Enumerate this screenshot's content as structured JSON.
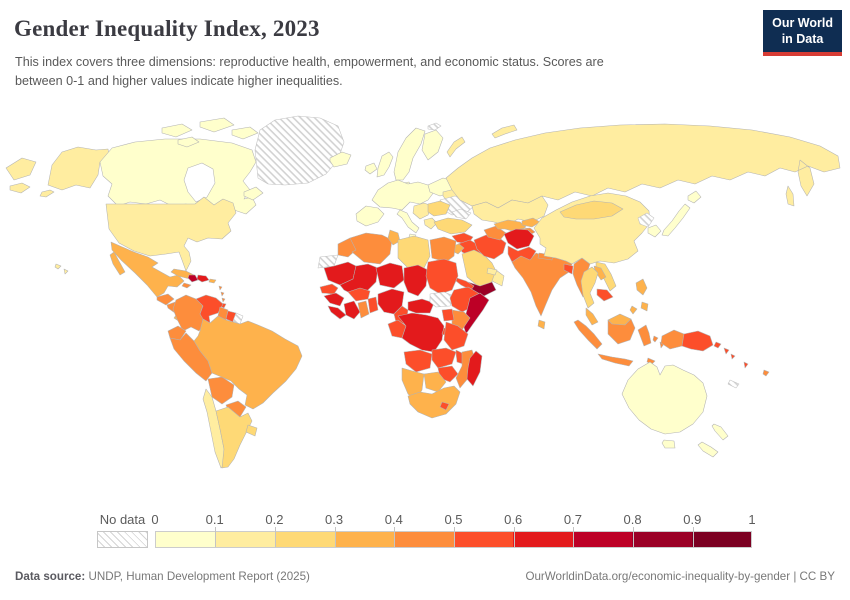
{
  "header": {
    "title": "Gender Inequality Index, 2023",
    "subtitle": "This index covers three dimensions: reproductive health, empowerment, and economic status. Scores are between 0-1 and higher values indicate higher inequalities.",
    "logo": {
      "line1": "Our World",
      "line2": "in Data",
      "bg": "#0f2d52",
      "accent": "#d73c34"
    }
  },
  "legend": {
    "no_data_label": "No data",
    "ticks": [
      "0",
      "0.1",
      "0.2",
      "0.3",
      "0.4",
      "0.5",
      "0.6",
      "0.7",
      "0.8",
      "0.9",
      "1"
    ],
    "bins": [
      "#ffffcc",
      "#ffeda0",
      "#fed976",
      "#feb24c",
      "#fd8d3c",
      "#fc4e2a",
      "#e31a1c",
      "#bd0026",
      "#9b0026",
      "#7c0022"
    ]
  },
  "footer": {
    "source_label": "Data source:",
    "source_value": " UNDP, Human Development Report (2025)",
    "right": "OurWorldinData.org/economic-inequality-by-gender | CC BY"
  },
  "map": {
    "stroke": "#b3b3b3",
    "hatch_stroke": "#c2c2c2",
    "region_fills": {
      "chukotka": "#ffeda0",
      "alaska": "#ffeda0",
      "canada": "#ffffcc",
      "hudson-bay": "#ffffff",
      "canada-arctic-1": "#ffffcc",
      "canada-arctic-2": "#ffffcc",
      "canada-arctic-3": "#ffffcc",
      "canada-arctic-4": "#ffffcc",
      "newfoundland": "#ffffcc",
      "greenland": "hatch",
      "iceland": "#ffffcc",
      "usa": "#ffeda0",
      "hawaii": "#ffeda0",
      "mexico": "#feb24c",
      "guatemala": "#fd8d3c",
      "honduras-nicaragua": "#fd8d3c",
      "costa-rica-panama": "#feb24c",
      "cuba": "#feb24c",
      "jamaica": "#fd8d3c",
      "haiti": "#bd0026",
      "dominican-republic": "#e31a1c",
      "puerto-rico": "#feb24c",
      "lesser-antilles": "#fd8d3c",
      "trinidad": "#fc4e2a",
      "colombia": "#fd8d3c",
      "venezuela": "#fc4e2a",
      "guyana": "#fd8d3c",
      "suriname": "#fc4e2a",
      "french-guiana": "hatch",
      "ecuador": "#fd8d3c",
      "peru": "#fd8d3c",
      "brazil": "#feb24c",
      "bolivia": "#fd8d3c",
      "paraguay": "#fd8d3c",
      "chile": "#ffeda0",
      "argentina": "#fed976",
      "uruguay": "#fed976",
      "ireland": "#ffffcc",
      "uk": "#ffffcc",
      "norway-sweden": "#ffffcc",
      "finland": "#ffffcc",
      "denmark": "#ffffcc",
      "europe-west": "#ffffcc",
      "iberia": "#ffffcc",
      "italy": "#ffffcc",
      "europe-central": "#ffffcc",
      "belarus": "#ffeda0",
      "ukraine": "hatch",
      "balkans": "#ffeda0",
      "romania-bulgaria": "#fed976",
      "greece": "#ffeda0",
      "russia": "#ffeda0",
      "novaya-zemlya-1": "#ffeda0",
      "novaya-zemlya-2": "#ffeda0",
      "svalbard": "hatch",
      "kazakhstan": "#ffeda0",
      "caucasus": "hatch",
      "turkey": "#fed976",
      "syria": "#fc4e2a",
      "iraq": "#fc4e2a",
      "israel": "#ffffcc",
      "jordan": "#feb24c",
      "saudi-arabia": "#fed976",
      "yemen": "#9b0026",
      "oman": "#ffeda0",
      "uae": "#ffeda0",
      "iran": "#fc4e2a",
      "turkmenistan": "#fd8d3c",
      "uzbekistan": "#feb24c",
      "kyrgyzstan": "#feb24c",
      "tajikistan": "#fd8d3c",
      "afghanistan": "#e31a1c",
      "pakistan": "#fc4e2a",
      "india": "#fd8d3c",
      "nepal": "#fd8d3c",
      "bangladesh": "#fc4e2a",
      "sri-lanka": "#feb24c",
      "myanmar": "#fd8d3c",
      "china": "#ffeda0",
      "mongolia": "#fed976",
      "north-korea": "hatch",
      "south-korea": "#ffffcc",
      "japan": "#ffffcc",
      "vietnam": "#fed976",
      "laos": "#feb24c",
      "thailand": "#fed976",
      "cambodia": "#fc4e2a",
      "malaysia": "#feb24c",
      "sumatra": "#fd8d3c",
      "java": "#fd8d3c",
      "borneo-malaysia": "#feb24c",
      "borneo-indonesia": "#fd8d3c",
      "sulawesi": "#fd8d3c",
      "moluccas": "#fd8d3c",
      "timor": "#fd8d3c",
      "philippines": "#feb24c",
      "west-papua": "#fd8d3c",
      "papua-new-guinea": "#fc4e2a",
      "solomon-islands": "#fc4e2a",
      "vanuatu": "#fc4e2a",
      "fiji": "#fd8d3c",
      "new-caledonia": "hatch",
      "australia": "#ffffcc",
      "tasmania": "#ffffcc",
      "new-zealand": "#ffffcc",
      "morocco": "#fd8d3c",
      "western-sahara": "hatch",
      "algeria": "#fd8d3c",
      "tunisia": "#feb24c",
      "libya": "#fed976",
      "egypt": "#fd8d3c",
      "mauritania": "#e31a1c",
      "mali": "#e31a1c",
      "niger": "#e31a1c",
      "chad": "#e31a1c",
      "sudan": "#fc4e2a",
      "eritrea": "#fc4e2a",
      "senegal": "#fc4e2a",
      "guinea": "#e31a1c",
      "sierra-leone-liberia": "#e31a1c",
      "ivory-coast": "#e31a1c",
      "ghana": "#fd8d3c",
      "togo-benin": "#fc4e2a",
      "burkina-faso": "#fc4e2a",
      "nigeria": "#e31a1c",
      "cameroon": "#fc4e2a",
      "central-african-republic": "#e31a1c",
      "south-sudan": "hatch",
      "ethiopia": "#fc4e2a",
      "somalia": "#bd0026",
      "kenya": "#fd8d3c",
      "uganda": "#fc4e2a",
      "congo-gabon": "#fc4e2a",
      "dr-congo": "#e31a1c",
      "rwanda-burundi": "#fc4e2a",
      "tanzania": "#fc4e2a",
      "angola": "#fc4e2a",
      "zambia": "#fc4e2a",
      "malawi": "#fc4e2a",
      "mozambique": "#fd8d3c",
      "zimbabwe": "#fc4e2a",
      "botswana": "#feb24c",
      "namibia": "#feb24c",
      "south-africa": "#feb24c",
      "lesotho": "#fc4e2a",
      "madagascar": "#e31a1c"
    }
  },
  "chart_data": {
    "type": "heatmap",
    "subtype": "choropleth world map",
    "title": "Gender Inequality Index, 2023",
    "unit_range": [
      0,
      1
    ],
    "legend_position": "bottom",
    "bins": [
      {
        "range": "0–0.1",
        "color": "#ffffcc"
      },
      {
        "range": "0.1–0.2",
        "color": "#ffeda0"
      },
      {
        "range": "0.2–0.3",
        "color": "#fed976"
      },
      {
        "range": "0.3–0.4",
        "color": "#feb24c"
      },
      {
        "range": "0.4–0.5",
        "color": "#fd8d3c"
      },
      {
        "range": "0.5–0.6",
        "color": "#fc4e2a"
      },
      {
        "range": "0.6–0.7",
        "color": "#e31a1c"
      },
      {
        "range": "0.7–0.8",
        "color": "#bd0026"
      },
      {
        "range": "0.8–0.9",
        "color": "#9b0026"
      },
      {
        "range": "0.9–1",
        "color": "#7c0022"
      }
    ],
    "no_data": {
      "label": "No data",
      "regions": [
        "Greenland",
        "Ukraine",
        "Western Sahara",
        "South Sudan",
        "French Guiana",
        "North Korea",
        "New Caledonia",
        "Svalbard",
        "Caucasus area"
      ]
    },
    "regions": [
      {
        "name": "Canada",
        "value_range": "0–0.1"
      },
      {
        "name": "Iceland",
        "value_range": "0–0.1"
      },
      {
        "name": "Norway",
        "value_range": "0–0.1"
      },
      {
        "name": "Sweden",
        "value_range": "0–0.1"
      },
      {
        "name": "Finland",
        "value_range": "0–0.1"
      },
      {
        "name": "Denmark",
        "value_range": "0–0.1"
      },
      {
        "name": "United Kingdom",
        "value_range": "0–0.1"
      },
      {
        "name": "Ireland",
        "value_range": "0–0.1"
      },
      {
        "name": "Western Europe",
        "value_range": "0–0.1"
      },
      {
        "name": "Spain",
        "value_range": "0–0.1"
      },
      {
        "name": "Italy",
        "value_range": "0–0.1"
      },
      {
        "name": "Poland",
        "value_range": "0–0.1"
      },
      {
        "name": "Israel",
        "value_range": "0–0.1"
      },
      {
        "name": "Japan",
        "value_range": "0–0.1"
      },
      {
        "name": "South Korea",
        "value_range": "0–0.1"
      },
      {
        "name": "Australia",
        "value_range": "0–0.1"
      },
      {
        "name": "New Zealand",
        "value_range": "0–0.1"
      },
      {
        "name": "United States",
        "value_range": "0.1–0.2"
      },
      {
        "name": "Chile",
        "value_range": "0.1–0.2"
      },
      {
        "name": "Russia",
        "value_range": "0.1–0.2"
      },
      {
        "name": "Kazakhstan",
        "value_range": "0.1–0.2"
      },
      {
        "name": "China",
        "value_range": "0.1–0.2"
      },
      {
        "name": "Greece",
        "value_range": "0.1–0.2"
      },
      {
        "name": "Belarus",
        "value_range": "0.1–0.2"
      },
      {
        "name": "Oman",
        "value_range": "0.1–0.2"
      },
      {
        "name": "United Arab Emirates",
        "value_range": "0.1–0.2"
      },
      {
        "name": "Balkans",
        "value_range": "0.1–0.2"
      },
      {
        "name": "Argentina",
        "value_range": "0.2–0.3"
      },
      {
        "name": "Uruguay",
        "value_range": "0.2–0.3"
      },
      {
        "name": "Mongolia",
        "value_range": "0.2–0.3"
      },
      {
        "name": "Turkey",
        "value_range": "0.2–0.3"
      },
      {
        "name": "Saudi Arabia",
        "value_range": "0.2–0.3"
      },
      {
        "name": "Romania",
        "value_range": "0.2–0.3"
      },
      {
        "name": "Bulgaria",
        "value_range": "0.2–0.3"
      },
      {
        "name": "Thailand",
        "value_range": "0.2–0.3"
      },
      {
        "name": "Vietnam",
        "value_range": "0.2–0.3"
      },
      {
        "name": "Libya",
        "value_range": "0.2–0.3"
      },
      {
        "name": "Mexico",
        "value_range": "0.3–0.4"
      },
      {
        "name": "Cuba",
        "value_range": "0.3–0.4"
      },
      {
        "name": "Panama",
        "value_range": "0.3–0.4"
      },
      {
        "name": "Brazil",
        "value_range": "0.3–0.4"
      },
      {
        "name": "Tunisia",
        "value_range": "0.3–0.4"
      },
      {
        "name": "Jordan",
        "value_range": "0.3–0.4"
      },
      {
        "name": "Uzbekistan",
        "value_range": "0.3–0.4"
      },
      {
        "name": "Kyrgyzstan",
        "value_range": "0.3–0.4"
      },
      {
        "name": "Malaysia",
        "value_range": "0.3–0.4"
      },
      {
        "name": "Philippines",
        "value_range": "0.3–0.4"
      },
      {
        "name": "Sri Lanka",
        "value_range": "0.3–0.4"
      },
      {
        "name": "Laos",
        "value_range": "0.3–0.4"
      },
      {
        "name": "South Africa",
        "value_range": "0.3–0.4"
      },
      {
        "name": "Botswana",
        "value_range": "0.3–0.4"
      },
      {
        "name": "Namibia",
        "value_range": "0.3–0.4"
      },
      {
        "name": "Colombia",
        "value_range": "0.4–0.5"
      },
      {
        "name": "Ecuador",
        "value_range": "0.4–0.5"
      },
      {
        "name": "Peru",
        "value_range": "0.4–0.5"
      },
      {
        "name": "Bolivia",
        "value_range": "0.4–0.5"
      },
      {
        "name": "Paraguay",
        "value_range": "0.4–0.5"
      },
      {
        "name": "Guatemala",
        "value_range": "0.4–0.5"
      },
      {
        "name": "Nicaragua",
        "value_range": "0.4–0.5"
      },
      {
        "name": "Jamaica",
        "value_range": "0.4–0.5"
      },
      {
        "name": "Guyana",
        "value_range": "0.4–0.5"
      },
      {
        "name": "Morocco",
        "value_range": "0.4–0.5"
      },
      {
        "name": "Algeria",
        "value_range": "0.4–0.5"
      },
      {
        "name": "Egypt",
        "value_range": "0.4–0.5"
      },
      {
        "name": "Ghana",
        "value_range": "0.4–0.5"
      },
      {
        "name": "Kenya",
        "value_range": "0.4–0.5"
      },
      {
        "name": "Mozambique",
        "value_range": "0.4–0.5"
      },
      {
        "name": "India",
        "value_range": "0.4–0.5"
      },
      {
        "name": "Nepal",
        "value_range": "0.4–0.5"
      },
      {
        "name": "Myanmar",
        "value_range": "0.4–0.5"
      },
      {
        "name": "Indonesia",
        "value_range": "0.4–0.5"
      },
      {
        "name": "Turkmenistan",
        "value_range": "0.4–0.5"
      },
      {
        "name": "Tajikistan",
        "value_range": "0.4–0.5"
      },
      {
        "name": "Fiji",
        "value_range": "0.4–0.5"
      },
      {
        "name": "Venezuela",
        "value_range": "0.5–0.6"
      },
      {
        "name": "Suriname",
        "value_range": "0.5–0.6"
      },
      {
        "name": "Trinidad and Tobago",
        "value_range": "0.5–0.6"
      },
      {
        "name": "Senegal",
        "value_range": "0.5–0.6"
      },
      {
        "name": "Burkina Faso",
        "value_range": "0.5–0.6"
      },
      {
        "name": "Togo and Benin",
        "value_range": "0.5–0.6"
      },
      {
        "name": "Sudan",
        "value_range": "0.5–0.6"
      },
      {
        "name": "Eritrea",
        "value_range": "0.5–0.6"
      },
      {
        "name": "Cameroon",
        "value_range": "0.5–0.6"
      },
      {
        "name": "Ethiopia",
        "value_range": "0.5–0.6"
      },
      {
        "name": "Uganda",
        "value_range": "0.5–0.6"
      },
      {
        "name": "Tanzania",
        "value_range": "0.5–0.6"
      },
      {
        "name": "Congo and Gabon",
        "value_range": "0.5–0.6"
      },
      {
        "name": "Angola",
        "value_range": "0.5–0.6"
      },
      {
        "name": "Zambia",
        "value_range": "0.5–0.6"
      },
      {
        "name": "Malawi",
        "value_range": "0.5–0.6"
      },
      {
        "name": "Zimbabwe",
        "value_range": "0.5–0.6"
      },
      {
        "name": "Lesotho",
        "value_range": "0.5–0.6"
      },
      {
        "name": "Syria",
        "value_range": "0.5–0.6"
      },
      {
        "name": "Iraq",
        "value_range": "0.5–0.6"
      },
      {
        "name": "Iran",
        "value_range": "0.5–0.6"
      },
      {
        "name": "Pakistan",
        "value_range": "0.5–0.6"
      },
      {
        "name": "Bangladesh",
        "value_range": "0.5–0.6"
      },
      {
        "name": "Cambodia",
        "value_range": "0.5–0.6"
      },
      {
        "name": "Papua New Guinea",
        "value_range": "0.5–0.6"
      },
      {
        "name": "Solomon Islands",
        "value_range": "0.5–0.6"
      },
      {
        "name": "Vanuatu",
        "value_range": "0.5–0.6"
      },
      {
        "name": "Dominican Republic",
        "value_range": "0.6–0.7"
      },
      {
        "name": "Mauritania",
        "value_range": "0.6–0.7"
      },
      {
        "name": "Mali",
        "value_range": "0.6–0.7"
      },
      {
        "name": "Niger",
        "value_range": "0.6–0.7"
      },
      {
        "name": "Chad",
        "value_range": "0.6–0.7"
      },
      {
        "name": "Guinea",
        "value_range": "0.6–0.7"
      },
      {
        "name": "Sierra Leone and Liberia",
        "value_range": "0.6–0.7"
      },
      {
        "name": "Ivory Coast",
        "value_range": "0.6–0.7"
      },
      {
        "name": "Nigeria",
        "value_range": "0.6–0.7"
      },
      {
        "name": "Central African Republic",
        "value_range": "0.6–0.7"
      },
      {
        "name": "DR Congo",
        "value_range": "0.6–0.7"
      },
      {
        "name": "Madagascar",
        "value_range": "0.6–0.7"
      },
      {
        "name": "Afghanistan",
        "value_range": "0.6–0.7"
      },
      {
        "name": "Haiti",
        "value_range": "0.7–0.8"
      },
      {
        "name": "Somalia",
        "value_range": "0.7–0.8"
      },
      {
        "name": "Yemen",
        "value_range": "0.8–0.9"
      }
    ]
  }
}
